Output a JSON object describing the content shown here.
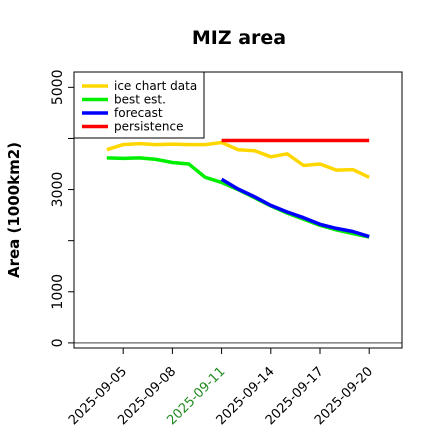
{
  "chart_data": {
    "type": "line",
    "title": "MIZ area",
    "ylabel": "Area (1000km2)",
    "xlabel": "",
    "xlim": [
      "2025-09-02",
      "2025-09-22"
    ],
    "ylim": [
      -100,
      5300
    ],
    "yticks": [
      0,
      1000,
      3000,
      5000
    ],
    "yticks_labeled": [
      "0",
      "1000",
      "3000",
      "5000"
    ],
    "yticks_minor": [
      2000,
      4000
    ],
    "xticks": [
      "2025-09-05",
      "2025-09-08",
      "2025-09-11",
      "2025-09-14",
      "2025-09-17",
      "2025-09-20"
    ],
    "highlighted_xtick": "2025-09-11",
    "highlight_color": "#228B22",
    "grid": false,
    "legend_position": "top-left",
    "series": [
      {
        "name": "ice chart data",
        "color": "#FFD700",
        "dates": [
          "2025-09-04",
          "2025-09-05",
          "2025-09-06",
          "2025-09-07",
          "2025-09-08",
          "2025-09-09",
          "2025-09-10",
          "2025-09-11",
          "2025-09-12",
          "2025-09-13",
          "2025-09-14",
          "2025-09-15",
          "2025-09-16",
          "2025-09-17",
          "2025-09-18",
          "2025-09-19",
          "2025-09-20"
        ],
        "values": [
          3780,
          3880,
          3900,
          3880,
          3890,
          3880,
          3880,
          3920,
          3780,
          3760,
          3640,
          3700,
          3470,
          3500,
          3380,
          3390,
          3240
        ]
      },
      {
        "name": "best est.",
        "color": "#00EE00",
        "dates": [
          "2025-09-04",
          "2025-09-05",
          "2025-09-06",
          "2025-09-07",
          "2025-09-08",
          "2025-09-09",
          "2025-09-10",
          "2025-09-11",
          "2025-09-12",
          "2025-09-13",
          "2025-09-14",
          "2025-09-15",
          "2025-09-16",
          "2025-09-17",
          "2025-09-18",
          "2025-09-19",
          "2025-09-20"
        ],
        "values": [
          3620,
          3610,
          3620,
          3590,
          3530,
          3500,
          3240,
          3140,
          3000,
          2840,
          2680,
          2540,
          2420,
          2300,
          2210,
          2140,
          2070
        ]
      },
      {
        "name": "forecast",
        "color": "#0000FF",
        "dates": [
          "2025-09-11",
          "2025-09-12",
          "2025-09-13",
          "2025-09-14",
          "2025-09-15",
          "2025-09-16",
          "2025-09-17",
          "2025-09-18",
          "2025-09-19",
          "2025-09-20"
        ],
        "values": [
          3200,
          3010,
          2860,
          2690,
          2560,
          2450,
          2320,
          2240,
          2180,
          2080
        ]
      },
      {
        "name": "persistence",
        "color": "#FF0000",
        "dates": [
          "2025-09-11",
          "2025-09-20"
        ],
        "values": [
          3960,
          3960
        ]
      },
      {
        "name": "",
        "color": "#808080",
        "dates": [
          "2025-09-02",
          "2025-09-22"
        ],
        "values": [
          0,
          0
        ]
      }
    ]
  }
}
